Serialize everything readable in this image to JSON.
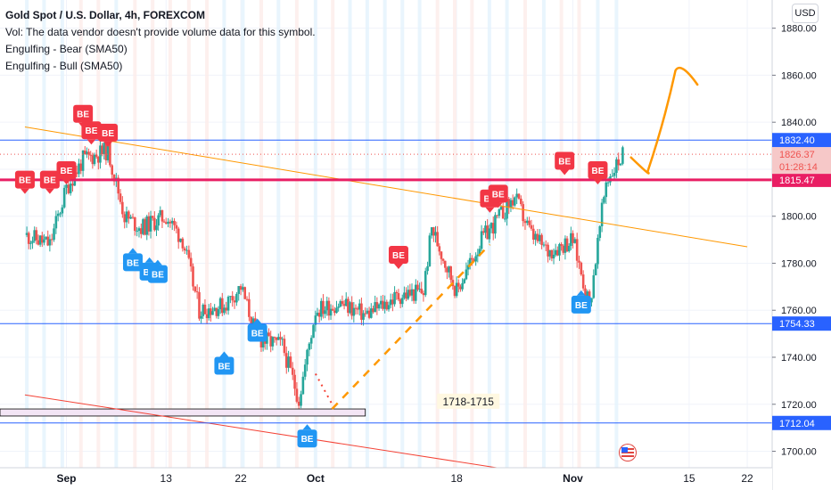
{
  "legend": {
    "title": "Gold Spot / U.S. Dollar, 4h, FOREXCOM",
    "vol": "Vol: The data vendor doesn't provide volume data for this symbol.",
    "ind1": "Engulfing - Bear (SMA50)",
    "ind2": "Engulfing - Bull (SMA50)"
  },
  "currency_button": "USD",
  "colors": {
    "up": "#26a69a",
    "down": "#ef5350",
    "bear_label": "#f23645",
    "bull_label": "#2196f3",
    "price_line": "#2962ff",
    "support": "#e91e63",
    "trend_orange": "#ff9800",
    "trend_red": "#f44336",
    "zone_fill": "#f3e5f5",
    "axis_text": "#131722"
  },
  "chart_data": {
    "type": "candlestick",
    "symbol": "Gold Spot / U.S. Dollar",
    "timeframe": "4h",
    "exchange": "FOREXCOM",
    "ylim": [
      1693,
      1892
    ],
    "y_ticks": [
      1700,
      1720,
      1740,
      1760,
      1780,
      1800,
      1820,
      1840,
      1860,
      1880
    ],
    "x_ticks": [
      "Sep",
      "13",
      "22",
      "Oct",
      "18",
      "Nov",
      "15",
      "22"
    ],
    "close_path": [
      {
        "d": "Aug 27",
        "v": 1792
      },
      {
        "d": "Aug 30",
        "v": 1788
      },
      {
        "d": "Sep 1",
        "v": 1812
      },
      {
        "d": "Sep 3",
        "v": 1824
      },
      {
        "d": "Sep 6",
        "v": 1828
      },
      {
        "d": "Sep 8",
        "v": 1800
      },
      {
        "d": "Sep 10",
        "v": 1795
      },
      {
        "d": "Sep 13",
        "v": 1800
      },
      {
        "d": "Sep 15",
        "v": 1790
      },
      {
        "d": "Sep 17",
        "v": 1760
      },
      {
        "d": "Sep 20",
        "v": 1762
      },
      {
        "d": "Sep 22",
        "v": 1770
      },
      {
        "d": "Sep 24",
        "v": 1748
      },
      {
        "d": "Sep 27",
        "v": 1745
      },
      {
        "d": "Sep 29",
        "v": 1722
      },
      {
        "d": "Oct 1",
        "v": 1760
      },
      {
        "d": "Oct 4",
        "v": 1763
      },
      {
        "d": "Oct 7",
        "v": 1758
      },
      {
        "d": "Oct 11",
        "v": 1766
      },
      {
        "d": "Oct 14",
        "v": 1768
      },
      {
        "d": "Oct 15",
        "v": 1795
      },
      {
        "d": "Oct 18",
        "v": 1768
      },
      {
        "d": "Oct 21",
        "v": 1790
      },
      {
        "d": "Oct 25",
        "v": 1808
      },
      {
        "d": "Oct 27",
        "v": 1792
      },
      {
        "d": "Oct 29",
        "v": 1785
      },
      {
        "d": "Nov 1",
        "v": 1790
      },
      {
        "d": "Nov 3",
        "v": 1762
      },
      {
        "d": "Nov 5",
        "v": 1815
      },
      {
        "d": "Nov 7",
        "v": 1826
      }
    ],
    "price_lines": [
      {
        "label": "1832.40",
        "price": 1832.4,
        "color": "#2962ff"
      },
      {
        "label": "1815.47",
        "price": 1815.47,
        "color": "#e91e63"
      },
      {
        "label": "1754.33",
        "price": 1754.33,
        "color": "#2962ff"
      },
      {
        "label": "1712.04",
        "price": 1712.04,
        "color": "#2962ff"
      }
    ],
    "current_price": {
      "label": "1826.37",
      "countdown": "01:28:14",
      "price": 1826.37
    },
    "zone": {
      "label": "1718-1715",
      "top": 1718,
      "bottom": 1715
    },
    "bear_signals": [
      {
        "date": "Aug 27",
        "price": 1808
      },
      {
        "date": "Aug 30",
        "price": 1808
      },
      {
        "date": "Sep 1",
        "price": 1812
      },
      {
        "date": "Sep 3",
        "price": 1836
      },
      {
        "date": "Sep 4",
        "price": 1829
      },
      {
        "date": "Sep 6",
        "price": 1828
      },
      {
        "date": "Oct 11",
        "price": 1776
      },
      {
        "date": "Oct 22",
        "price": 1800
      },
      {
        "date": "Oct 23",
        "price": 1802
      },
      {
        "date": "Oct 31",
        "price": 1816
      },
      {
        "date": "Nov 4",
        "price": 1812
      }
    ],
    "bull_signals": [
      {
        "date": "Sep 9",
        "price": 1788
      },
      {
        "date": "Sep 11",
        "price": 1784
      },
      {
        "date": "Sep 12",
        "price": 1783
      },
      {
        "date": "Sep 20",
        "price": 1744
      },
      {
        "date": "Sep 24",
        "price": 1758
      },
      {
        "date": "Sep 30",
        "price": 1713
      },
      {
        "date": "Nov 2",
        "price": 1770
      }
    ],
    "signal_label": "BE",
    "trendlines": [
      {
        "name": "descending-resistance",
        "from": [
          "Aug 27",
          1838
        ],
        "to": [
          "Nov 22",
          1787
        ]
      },
      {
        "name": "lower-channel",
        "from": [
          "Aug 27",
          1724
        ],
        "to": [
          "Nov 1",
          1688
        ]
      }
    ],
    "forecast_path": [
      {
        "d": "Nov 8",
        "v": 1825
      },
      {
        "d": "Nov 10",
        "v": 1818
      },
      {
        "d": "Nov 12",
        "v": 1840
      },
      {
        "d": "Nov 14",
        "v": 1862
      },
      {
        "d": "Nov 16",
        "v": 1856
      }
    ],
    "grid": true
  }
}
